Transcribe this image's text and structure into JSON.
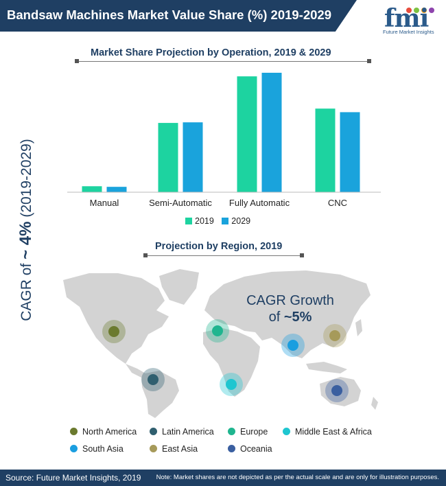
{
  "header": {
    "title": "Bandsaw Machines Market Value Share (%) 2019-2029"
  },
  "logo": {
    "letters": "fmi",
    "tagline": "Future Market Insights",
    "dot_colors": [
      "#e74c3c",
      "#7dc241",
      "#f39c12",
      "#8e44ad"
    ]
  },
  "side_label": {
    "prefix": "CAGR of ",
    "value": "~ 4%",
    "suffix": " (2019-2029)"
  },
  "chart_section": {
    "title": "Market Share Projection by Operation, 2019 & 2029"
  },
  "chart_data": {
    "type": "bar",
    "title": "Market Share Projection by Operation, 2019 & 2029",
    "categories": [
      "Manual",
      "Semi-Automatic",
      "Fully Automatic",
      "CNC"
    ],
    "series": [
      {
        "name": "2019",
        "color": "#1dd3a0",
        "values": [
          5,
          58,
          97,
          70
        ]
      },
      {
        "name": "2029",
        "color": "#1aa3dc",
        "values": [
          4.5,
          58.5,
          100,
          67
        ]
      }
    ],
    "ylim": [
      0,
      100
    ],
    "xlabel": "",
    "ylabel": "",
    "grid": false,
    "legend": "bottom"
  },
  "region_section": {
    "title": "Projection by Region, 2019"
  },
  "map": {
    "cagr_line1": "CAGR Growth",
    "cagr_line2_prefix": "of ",
    "cagr_line2_value": "~5%",
    "markers": [
      {
        "region": "North America",
        "color": "#6b7a2e"
      },
      {
        "region": "Latin America",
        "color": "#2f5f6f"
      },
      {
        "region": "Europe",
        "color": "#1fb58f"
      },
      {
        "region": "Middle East & Africa",
        "color": "#1fc6d0"
      },
      {
        "region": "South Asia",
        "color": "#1a9ee0"
      },
      {
        "region": "East Asia",
        "color": "#a69a5a"
      },
      {
        "region": "Oceania",
        "color": "#3a5fa0"
      }
    ]
  },
  "region_legend": [
    {
      "label": "North America",
      "color": "#6b7a2e"
    },
    {
      "label": "Latin America",
      "color": "#2f5f6f"
    },
    {
      "label": "Europe",
      "color": "#1fb58f"
    },
    {
      "label": "Middle East & Africa",
      "color": "#1fc6d0"
    },
    {
      "label": "South Asia",
      "color": "#1a9ee0"
    },
    {
      "label": "East Asia",
      "color": "#a69a5a"
    },
    {
      "label": "Oceania",
      "color": "#3a5fa0"
    }
  ],
  "footer": {
    "source": "Source: Future Market Insights, 2019",
    "note": "Note: Market shares are not depicted as per the actual scale and are only for illustration purposes."
  }
}
